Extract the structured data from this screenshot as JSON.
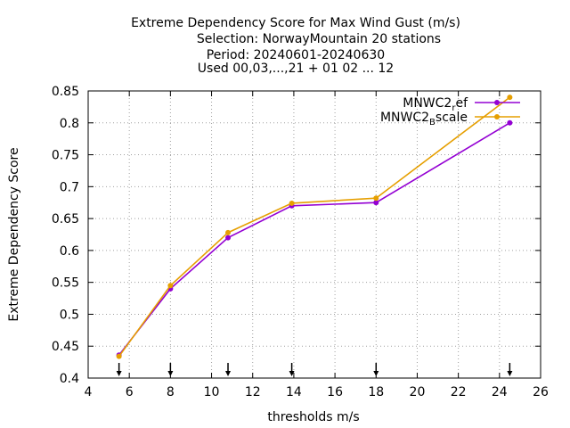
{
  "chart_data": {
    "type": "line",
    "title_lines": [
      "Extreme Dependency Score  for Max Wind Gust (m/s)",
      "Selection: NorwayMountain     20 stations",
      "Period: 20240601-20240630",
      "Used 00,03,...,21 + 01 02 ... 12"
    ],
    "xlabel": "thresholds m/s",
    "ylabel": "Extreme Dependency Score",
    "xlim": [
      4,
      26
    ],
    "ylim": [
      0.4,
      0.85
    ],
    "xticks": [
      4,
      6,
      8,
      10,
      12,
      14,
      16,
      18,
      20,
      22,
      24,
      26
    ],
    "yticks": [
      0.4,
      0.45,
      0.5,
      0.55,
      0.6,
      0.65,
      0.7,
      0.75,
      0.8,
      0.85
    ],
    "ytick_labels": [
      "0.4",
      "0.45",
      "0.5",
      "0.55",
      "0.6",
      "0.65",
      "0.7",
      "0.75",
      "0.8",
      "0.85"
    ],
    "grid": true,
    "legend_position": "top-right",
    "threshold_arrows": [
      5.5,
      8,
      10.8,
      13.9,
      18,
      24.5
    ],
    "series": [
      {
        "name_base": "MNWC2",
        "name_sub": "r",
        "name_rest": "ef",
        "color": "#9400d3",
        "marker": "filled-circle",
        "x": [
          5.5,
          8,
          10.8,
          13.9,
          18,
          24.5
        ],
        "y": [
          0.436,
          0.54,
          0.62,
          0.67,
          0.675,
          0.8
        ]
      },
      {
        "name_base": "MNWC2",
        "name_sub": "B",
        "name_rest": "scale",
        "color": "#e69f00",
        "marker": "filled-circle",
        "x": [
          5.5,
          8,
          10.8,
          13.9,
          18,
          24.5
        ],
        "y": [
          0.434,
          0.545,
          0.628,
          0.674,
          0.682,
          0.84
        ]
      }
    ]
  }
}
